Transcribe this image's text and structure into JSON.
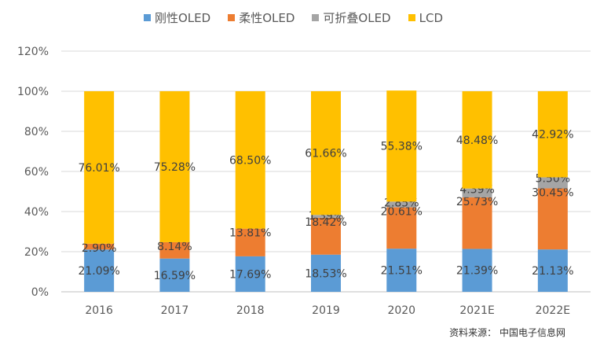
{
  "legend": [
    {
      "label": "刚性OLED",
      "color": "#5B9BD5"
    },
    {
      "label": "柔性OLED",
      "color": "#ED7D31"
    },
    {
      "label": "可折叠OLED",
      "color": "#A5A5A5"
    },
    {
      "label": "LCD",
      "color": "#FFC000"
    }
  ],
  "source": "资料来源： 中国电子信息网",
  "chart_data": {
    "type": "bar",
    "stacked": true,
    "title": "",
    "xlabel": "",
    "ylabel": "",
    "ylim": [
      0,
      120
    ],
    "yticks": [
      "0%",
      "20%",
      "40%",
      "60%",
      "80%",
      "100%",
      "120%"
    ],
    "categories": [
      "2016",
      "2017",
      "2018",
      "2019",
      "2020",
      "2021E",
      "2022E"
    ],
    "series": [
      {
        "name": "刚性OLED",
        "color": "#5B9BD5",
        "values": [
          21.09,
          16.59,
          17.69,
          18.53,
          21.51,
          21.39,
          21.13
        ],
        "labels": [
          "21.09%",
          "16.59%",
          "17.69%",
          "18.53%",
          "21.51%",
          "21.39%",
          "21.13%"
        ]
      },
      {
        "name": "柔性OLED",
        "color": "#ED7D31",
        "values": [
          2.9,
          8.14,
          13.81,
          18.42,
          20.61,
          25.73,
          30.45
        ],
        "labels": [
          "2.90%",
          "8.14%",
          "13.81%",
          "18.42%",
          "20.61%",
          "25.73%",
          "30.45%"
        ]
      },
      {
        "name": "可折叠OLED",
        "color": "#A5A5A5",
        "values": [
          0,
          0,
          0,
          1.39,
          2.85,
          4.39,
          5.5
        ],
        "labels": [
          "",
          "",
          "",
          "1.39%",
          "2.85%",
          "4.39%",
          "5.50%"
        ]
      },
      {
        "name": "LCD",
        "color": "#FFC000",
        "values": [
          76.01,
          75.28,
          68.5,
          61.66,
          55.38,
          48.48,
          42.92
        ],
        "labels": [
          "76.01%",
          "75.28%",
          "68.50%",
          "61.66%",
          "55.38%",
          "48.48%",
          "42.92%"
        ]
      }
    ],
    "grid": true,
    "legend_position": "top"
  }
}
